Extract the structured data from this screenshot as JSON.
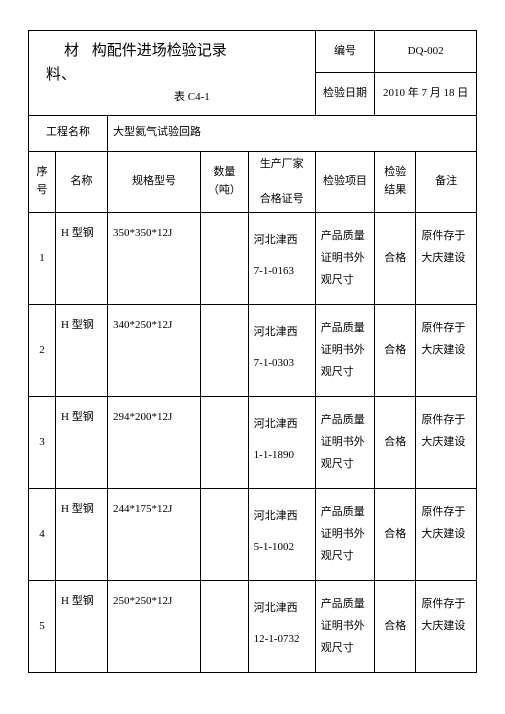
{
  "title": {
    "line1a": "材",
    "line1b": "构配件进场检验记录",
    "line1c": "料、",
    "sub": "表 C4-1"
  },
  "header": {
    "number_label": "编号",
    "number_value": "DQ-002",
    "project_label": "工程名称",
    "project_value": "大型氦气试验回路",
    "date_label": "检验日期",
    "date_value": "2010 年 7 月 18 日"
  },
  "columns": {
    "seq": "序号",
    "name": "名称",
    "spec": "规格型号",
    "qty1": "数量",
    "qty2": "（吨）",
    "mfr1": "生产厂家",
    "mfr2": "合格证号",
    "item": "检验项目",
    "result": "检验结果",
    "remark": "备注"
  },
  "rows": [
    {
      "seq": "1",
      "name": "H 型钢",
      "spec": "350*350*12J",
      "qty": "",
      "mfr_name": "河北津西",
      "cert": "7-1-0163",
      "item": "产品质量证明书外观尺寸",
      "result": "合格",
      "remark": "原件存于大庆建设"
    },
    {
      "seq": "2",
      "name": "H 型钢",
      "spec": "340*250*12J",
      "qty": "",
      "mfr_name": "河北津西",
      "cert": "7-1-0303",
      "item": "产品质量证明书外观尺寸",
      "result": "合格",
      "remark": "原件存于大庆建设"
    },
    {
      "seq": "3",
      "name": "H 型钢",
      "spec": "294*200*12J",
      "qty": "",
      "mfr_name": "河北津西",
      "cert": "1-1-1890",
      "item": "产品质量证明书外观尺寸",
      "result": "合格",
      "remark": "原件存于大庆建设"
    },
    {
      "seq": "4",
      "name": "H 型钢",
      "spec": "244*175*12J",
      "qty": "",
      "mfr_name": "河北津西",
      "cert": "5-1-1002",
      "item": "产品质量证明书外观尺寸",
      "result": "合格",
      "remark": "原件存于大庆建设"
    },
    {
      "seq": "5",
      "name": "H 型钢",
      "spec": "250*250*12J",
      "qty": "",
      "mfr_name": "河北津西",
      "cert": "12-1-0732",
      "item": "产品质量证明书外观尺寸",
      "result": "合格",
      "remark": "原件存于大庆建设"
    }
  ],
  "colwidths": {
    "seq": "25px",
    "name": "48px",
    "spec": "86px",
    "qty": "38px",
    "mfr": "62px",
    "item": "55px",
    "result": "38px",
    "remark": "56px"
  }
}
